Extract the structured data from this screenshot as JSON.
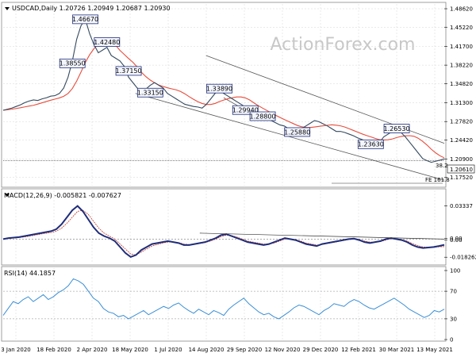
{
  "main": {
    "title": "USDCAD,Daily 1.20726 1.20949 1.20687 1.20930",
    "watermark": "ActionForex.com",
    "y_ticks": [
      "1.48620",
      "1.45220",
      "1.41700",
      "1.38220",
      "1.34820",
      "1.31300",
      "1.27820",
      "1.24420",
      "1.20900",
      "1.17520"
    ],
    "current_price": "1.20610",
    "fe_label": "FE 161.8",
    "level_38": "38.2",
    "labels": [
      "1.46670",
      "1.38550",
      "1.42480",
      "1.37150",
      "1.33150",
      "1.33890",
      "1.29940",
      "1.28800",
      "1.25880",
      "1.26530",
      "1.23630"
    ]
  },
  "macd": {
    "title": "MACD(12,26,9) -0.005821 -0.007627",
    "y_ticks": [
      "0.03337",
      "0.00",
      "0.00",
      "-0.018262"
    ]
  },
  "rsi": {
    "title": "RSI(14) 44.1857",
    "y_ticks": [
      "100",
      "70",
      "30",
      "0"
    ]
  },
  "x_ticks": [
    "3 Jan 2020",
    "18 Feb 2020",
    "2 Apr 2020",
    "18 May 2020",
    "1 Jul 2020",
    "14 Aug 2020",
    "29 Sep 2020",
    "12 Nov 2020",
    "29 Dec 2020",
    "12 Feb 2021",
    "30 Mar 2021",
    "13 May 2021"
  ],
  "colors": {
    "price": "#34495e",
    "ma": "#e74c3c",
    "channel": "#555555",
    "macd": "#1f2d7a",
    "signal": "#c0392b",
    "rsi": "#3a8fd6",
    "label_border": "#1f2d7a",
    "grid": "#d6d6d6"
  },
  "chart_data": [
    {
      "type": "line",
      "title": "USDCAD,Daily 1.20726 1.20949 1.20687 1.20930",
      "ylim": [
        1.16,
        1.495
      ],
      "series": [
        {
          "name": "USDCAD",
          "values": [
            1.299,
            1.301,
            1.303,
            1.306,
            1.309,
            1.313,
            1.316,
            1.318,
            1.317,
            1.32,
            1.322,
            1.325,
            1.326,
            1.33,
            1.34,
            1.36,
            1.39,
            1.43,
            1.455,
            1.4667,
            1.44,
            1.42,
            1.405,
            1.41,
            1.415,
            1.4,
            1.395,
            1.39,
            1.38,
            1.36,
            1.35,
            1.34,
            1.335,
            1.338,
            1.345,
            1.35,
            1.345,
            1.34,
            1.33,
            1.325,
            1.32,
            1.315,
            1.31,
            1.308,
            1.306,
            1.305,
            1.303,
            1.31,
            1.32,
            1.33,
            1.3389,
            1.33,
            1.325,
            1.32,
            1.315,
            1.31,
            1.305,
            1.3,
            1.295,
            1.29,
            1.288,
            1.285,
            1.28,
            1.276,
            1.272,
            1.27,
            1.265,
            1.262,
            1.2588,
            1.265,
            1.27,
            1.275,
            1.28,
            1.278,
            1.274,
            1.27,
            1.265,
            1.26,
            1.26,
            1.258,
            1.255,
            1.252,
            1.248,
            1.245,
            1.242,
            1.24,
            1.238,
            1.239,
            1.25,
            1.255,
            1.26,
            1.2653,
            1.258,
            1.25,
            1.24,
            1.23,
            1.22,
            1.21,
            1.206,
            1.203,
            1.205,
            1.207,
            1.2093
          ]
        }
      ]
    },
    {
      "type": "line",
      "title": "MACD(12,26,9) -0.005821 -0.007627",
      "ylim": [
        -0.0245,
        0.0395
      ],
      "series": [
        {
          "name": "MACD",
          "values": [
            0.0,
            0.001,
            0.0015,
            0.002,
            0.003,
            0.004,
            0.005,
            0.006,
            0.007,
            0.008,
            0.01,
            0.015,
            0.022,
            0.029,
            0.0334,
            0.028,
            0.02,
            0.012,
            0.006,
            0.003,
            0.001,
            -0.002,
            -0.008,
            -0.014,
            -0.018,
            -0.016,
            -0.011,
            -0.008,
            -0.005,
            -0.004,
            -0.003,
            -0.002,
            -0.003,
            -0.004,
            -0.006,
            -0.006,
            -0.005,
            -0.004,
            -0.003,
            -0.001,
            0.001,
            0.004,
            0.005,
            0.003,
            0.001,
            -0.001,
            -0.003,
            -0.004,
            -0.005,
            -0.006,
            -0.005,
            -0.003,
            -0.001,
            0.001,
            0.0,
            -0.001,
            -0.003,
            -0.005,
            -0.006,
            -0.007,
            -0.005,
            -0.004,
            -0.003,
            -0.002,
            -0.001,
            0.0,
            0.0005,
            -0.001,
            -0.003,
            -0.004,
            -0.003,
            -0.002,
            0.0,
            0.001,
            0.0,
            -0.001,
            -0.003,
            -0.006,
            -0.008,
            -0.009,
            -0.0085,
            -0.008,
            -0.007,
            -0.0058
          ]
        },
        {
          "name": "Signal",
          "values": [
            0.0,
            0.0005,
            0.001,
            0.0015,
            0.0022,
            0.003,
            0.004,
            0.005,
            0.0058,
            0.0066,
            0.008,
            0.011,
            0.016,
            0.022,
            0.028,
            0.029,
            0.025,
            0.018,
            0.011,
            0.006,
            0.003,
            0.0,
            -0.005,
            -0.01,
            -0.015,
            -0.016,
            -0.013,
            -0.01,
            -0.007,
            -0.0055,
            -0.004,
            -0.003,
            -0.003,
            -0.0035,
            -0.005,
            -0.0055,
            -0.005,
            -0.0045,
            -0.0035,
            -0.002,
            0.0,
            0.0025,
            0.004,
            0.0035,
            0.002,
            0.0,
            -0.002,
            -0.003,
            -0.004,
            -0.005,
            -0.005,
            -0.004,
            -0.002,
            0.0,
            0.0002,
            -0.0005,
            -0.002,
            -0.004,
            -0.005,
            -0.006,
            -0.0055,
            -0.0045,
            -0.0035,
            -0.0025,
            -0.0015,
            -0.0005,
            0.0,
            -0.0005,
            -0.002,
            -0.003,
            -0.003,
            -0.0025,
            -0.001,
            0.0005,
            0.0002,
            -0.0005,
            -0.002,
            -0.0045,
            -0.0065,
            -0.008,
            -0.0082,
            -0.008,
            -0.0078,
            -0.0076
          ]
        }
      ]
    },
    {
      "type": "line",
      "title": "RSI(14) 44.1857",
      "ylim": [
        0,
        100
      ],
      "series": [
        {
          "name": "RSI",
          "values": [
            35,
            45,
            55,
            52,
            58,
            62,
            55,
            60,
            65,
            58,
            62,
            68,
            72,
            78,
            88,
            85,
            80,
            70,
            60,
            55,
            45,
            40,
            38,
            33,
            35,
            30,
            34,
            38,
            42,
            36,
            40,
            44,
            48,
            45,
            50,
            53,
            47,
            42,
            38,
            44,
            40,
            36,
            42,
            39,
            35,
            44,
            50,
            55,
            60,
            52,
            46,
            40,
            36,
            38,
            33,
            30,
            35,
            40,
            46,
            50,
            48,
            44,
            40,
            36,
            42,
            46,
            52,
            50,
            48,
            54,
            58,
            55,
            50,
            46,
            44,
            48,
            52,
            56,
            60,
            55,
            50,
            44,
            40,
            36,
            32,
            35,
            42,
            40,
            44
          ]
        }
      ]
    }
  ]
}
